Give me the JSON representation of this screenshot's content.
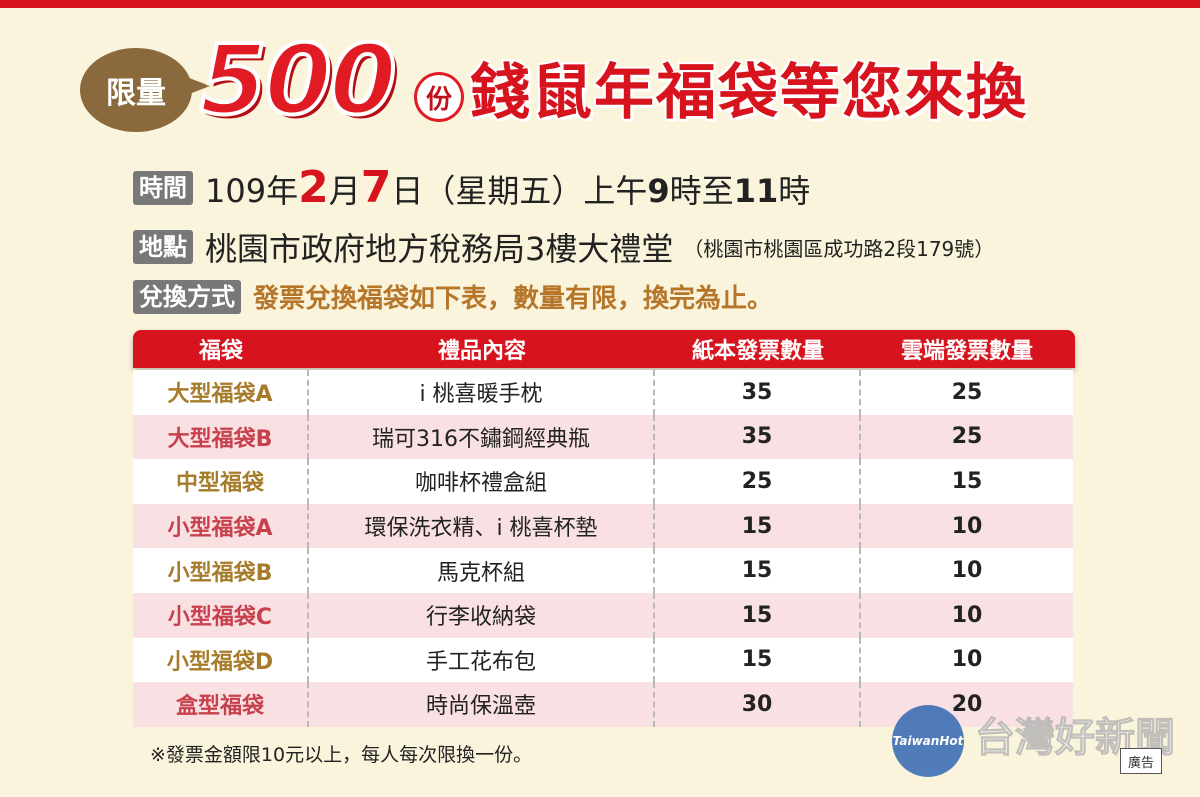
{
  "title": {
    "badge": "限量",
    "number": "500",
    "unit": "份",
    "main": "錢鼠年福袋等您來換"
  },
  "info": {
    "time": {
      "tag": "時間",
      "year": "109年",
      "month": "2",
      "month_unit": "月",
      "day": "7",
      "day_unit": "日",
      "weekday": "（星期五）",
      "am": "上午",
      "h1": "9",
      "mid": "時至",
      "h2": "11",
      "end": "時"
    },
    "place": {
      "tag": "地點",
      "text": "桃園市政府地方稅務局3樓大禮堂",
      "address": "（桃園市桃園區成功路2段179號）"
    },
    "method": {
      "tag": "兌換方式",
      "text": "發票兌換福袋如下表，數量有限，換完為止。"
    }
  },
  "table": {
    "headers": [
      "福袋",
      "禮品內容",
      "紙本發票數量",
      "雲端發票數量"
    ],
    "rows": [
      {
        "bag": "大型福袋A",
        "content": "i 桃喜暖手枕",
        "paper": "35",
        "cloud": "25"
      },
      {
        "bag": "大型福袋B",
        "content": "瑞可316不鏽鋼經典瓶",
        "paper": "35",
        "cloud": "25"
      },
      {
        "bag": "中型福袋",
        "content": "咖啡杯禮盒組",
        "paper": "25",
        "cloud": "15"
      },
      {
        "bag": "小型福袋A",
        "content": "環保洗衣精、i 桃喜杯墊",
        "paper": "15",
        "cloud": "10"
      },
      {
        "bag": "小型福袋B",
        "content": "馬克杯組",
        "paper": "15",
        "cloud": "10"
      },
      {
        "bag": "小型福袋C",
        "content": "行李收納袋",
        "paper": "15",
        "cloud": "10"
      },
      {
        "bag": "小型福袋D",
        "content": "手工花布包",
        "paper": "15",
        "cloud": "10"
      },
      {
        "bag": "盒型福袋",
        "content": "時尚保溫壺",
        "paper": "30",
        "cloud": "20"
      }
    ]
  },
  "footnote": "※發票金額限10元以上，每人每次限換一份。",
  "ad_label": "廣告",
  "watermark": {
    "logo": "TaiwanHot",
    "text": "台灣好新聞"
  },
  "colors": {
    "red": "#d7131e",
    "gold": "#a67c2a",
    "pink_row": "#f9e0e3",
    "bg": "#fbf4dc"
  }
}
